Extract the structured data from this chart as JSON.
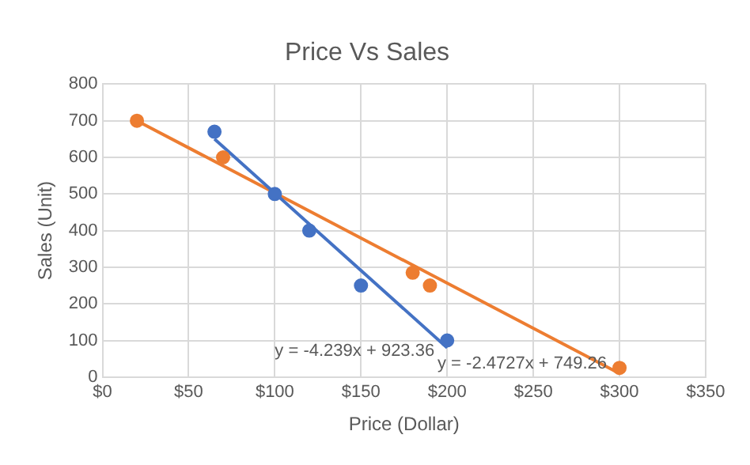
{
  "chart_data": {
    "type": "scatter",
    "title": "Price Vs Sales",
    "xlabel": "Price (Dollar)",
    "ylabel": "Sales (Unit)",
    "series": [
      {
        "color": "#4472c4",
        "marker": "circle",
        "x": [
          65,
          100,
          120,
          150,
          200
        ],
        "values": [
          670,
          500,
          400,
          250,
          100
        ]
      },
      {
        "color": "#ed7d31",
        "marker": "circle",
        "x": [
          20,
          70,
          100,
          180,
          190,
          300
        ],
        "values": [
          700,
          600,
          null,
          285,
          250,
          25
        ]
      },
      {
        "type": "line",
        "color": "#4472c4",
        "marker": "none",
        "x": [
          65,
          200
        ],
        "values": [
          650,
          80
        ]
      },
      {
        "type": "line",
        "color": "#ed7d31",
        "marker": "none",
        "x": [
          20,
          300
        ],
        "values": [
          700,
          10
        ]
      }
    ],
    "annotations": [
      "y = -4.239x + 923.36",
      "y = -2.4727x + 749.26"
    ],
    "xlim": [
      0,
      350
    ],
    "xticks": [
      {
        "value": 0,
        "label": "$0"
      },
      {
        "value": 50,
        "label": "$50"
      },
      {
        "value": 100,
        "label": "$100"
      },
      {
        "value": 150,
        "label": "$150"
      },
      {
        "value": 200,
        "label": "$200"
      },
      {
        "value": 250,
        "label": "$250"
      },
      {
        "value": 300,
        "label": "$300"
      },
      {
        "value": 350,
        "label": "$350"
      }
    ],
    "ylim": [
      0,
      800
    ],
    "yticks": [
      0,
      100,
      200,
      300,
      400,
      500,
      600,
      700,
      800
    ],
    "grid": true,
    "legend": false
  }
}
